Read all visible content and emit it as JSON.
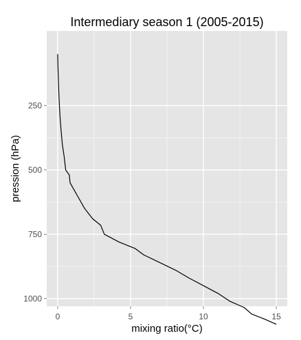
{
  "chart_data": {
    "type": "line",
    "title": "Intermediary season 1 (2005-2015)",
    "xlabel": "mixing ratio(°C)",
    "ylabel": "pression (hPa)",
    "xlim": [
      -0.75,
      15.75
    ],
    "ylim": [
      -40,
      1030
    ],
    "y_reversed": true,
    "grid": true,
    "x_ticks": [
      0,
      5,
      10,
      15
    ],
    "x_tick_labels": [
      "0",
      "5",
      "10",
      "15"
    ],
    "y_ticks": [
      250,
      500,
      750,
      1000
    ],
    "y_tick_labels": [
      "250",
      "500",
      "750",
      "1000"
    ],
    "colors": {
      "panel": "#e5e5e5",
      "grid_major": "#ffffff",
      "grid_minor": "#f2f2f2",
      "line": "#000000",
      "tick": "#7f7f7f"
    },
    "series": [
      {
        "points": [
          [
            0.0,
            50
          ],
          [
            0.02,
            100
          ],
          [
            0.05,
            150
          ],
          [
            0.08,
            200
          ],
          [
            0.12,
            250
          ],
          [
            0.17,
            300
          ],
          [
            0.24,
            350
          ],
          [
            0.32,
            400
          ],
          [
            0.45,
            450
          ],
          [
            0.55,
            500
          ],
          [
            0.8,
            520
          ],
          [
            0.85,
            550
          ],
          [
            1.1,
            575
          ],
          [
            1.45,
            610
          ],
          [
            1.85,
            650
          ],
          [
            2.4,
            690
          ],
          [
            2.95,
            715
          ],
          [
            3.2,
            750
          ],
          [
            4.2,
            780
          ],
          [
            5.3,
            805
          ],
          [
            5.9,
            830
          ],
          [
            7.0,
            860
          ],
          [
            8.1,
            890
          ],
          [
            9.0,
            920
          ],
          [
            10.0,
            950
          ],
          [
            11.0,
            980
          ],
          [
            11.8,
            1010
          ],
          [
            12.8,
            1035
          ],
          [
            13.3,
            1060
          ],
          [
            14.2,
            1080
          ],
          [
            15.0,
            1100
          ]
        ]
      }
    ]
  }
}
